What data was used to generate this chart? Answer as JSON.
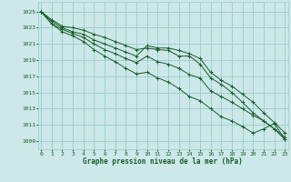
{
  "title": "Graphe pression niveau de la mer (hPa)",
  "bg_color": "#cce8e8",
  "grid_color": "#99cccc",
  "line_color": "#1a5c2a",
  "text_color": "#1a5c2a",
  "ylabel_vals": [
    1009,
    1011,
    1013,
    1015,
    1017,
    1019,
    1021,
    1023,
    1025
  ],
  "x_hours": [
    0,
    1,
    2,
    3,
    4,
    5,
    6,
    7,
    8,
    9,
    10,
    11,
    12,
    13,
    14,
    15,
    16,
    17,
    18,
    19,
    20,
    21,
    22,
    23
  ],
  "series": [
    [
      1025.0,
      1024.0,
      1023.2,
      1023.0,
      1022.7,
      1022.2,
      1021.8,
      1021.3,
      1020.8,
      1020.3,
      1020.5,
      1020.3,
      1020.2,
      1019.5,
      1019.5,
      1018.5,
      1016.8,
      1016.0,
      1015.0,
      1013.8,
      1012.5,
      1011.5,
      1010.5,
      1009.2
    ],
    [
      1025.0,
      1023.8,
      1023.0,
      1022.5,
      1022.2,
      1021.5,
      1021.0,
      1020.5,
      1020.0,
      1019.5,
      1020.8,
      1020.5,
      1020.5,
      1020.2,
      1019.8,
      1019.2,
      1017.5,
      1016.5,
      1015.8,
      1014.8,
      1013.8,
      1012.5,
      1011.3,
      1010.0
    ],
    [
      1025.0,
      1023.5,
      1022.8,
      1022.3,
      1021.8,
      1021.0,
      1020.3,
      1019.8,
      1019.2,
      1018.7,
      1019.5,
      1018.8,
      1018.5,
      1018.0,
      1017.2,
      1016.8,
      1015.2,
      1014.5,
      1013.8,
      1013.0,
      1012.2,
      1011.5,
      1010.5,
      1009.5
    ],
    [
      1025.0,
      1023.5,
      1022.5,
      1022.0,
      1021.3,
      1020.3,
      1019.5,
      1018.8,
      1018.0,
      1017.3,
      1017.5,
      1016.8,
      1016.3,
      1015.5,
      1014.5,
      1014.0,
      1013.0,
      1012.0,
      1011.5,
      1010.8,
      1010.0,
      1010.5,
      1011.2,
      1009.2
    ]
  ],
  "ylim": [
    1008.0,
    1026.2
  ],
  "xlim": [
    -0.3,
    23.3
  ],
  "figsize": [
    3.2,
    2.0
  ],
  "dpi": 100
}
